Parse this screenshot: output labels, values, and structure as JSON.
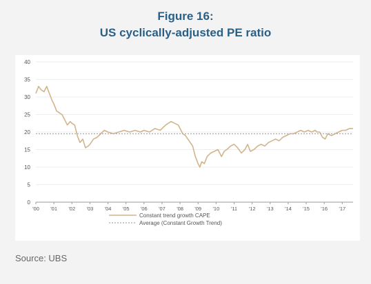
{
  "figure": {
    "number": "Figure 16:",
    "title": "US cyclically-adjusted PE ratio",
    "source": "Source: UBS"
  },
  "colors": {
    "cape_line": "#d2b48c",
    "average_line": "#a9a9a9",
    "title": "#2a5f86",
    "axis": "#555555"
  },
  "chart_data": {
    "type": "line",
    "title": "US cyclically-adjusted PE ratio",
    "xlabel": "",
    "ylabel": "",
    "xlim": [
      2000.0,
      2017.6
    ],
    "ylim": [
      0,
      40
    ],
    "y_ticks": [
      0,
      5,
      10,
      15,
      20,
      25,
      30,
      35,
      40
    ],
    "x_ticks": [
      {
        "x": 2000,
        "label": "'00"
      },
      {
        "x": 2001,
        "label": "'01"
      },
      {
        "x": 2002,
        "label": "'02"
      },
      {
        "x": 2003,
        "label": "'03"
      },
      {
        "x": 2004,
        "label": "'04"
      },
      {
        "x": 2005,
        "label": "'05"
      },
      {
        "x": 2006,
        "label": "'06"
      },
      {
        "x": 2007,
        "label": "'07"
      },
      {
        "x": 2008,
        "label": "'08"
      },
      {
        "x": 2009,
        "label": "'09"
      },
      {
        "x": 2010,
        "label": "'10"
      },
      {
        "x": 2011,
        "label": "'11"
      },
      {
        "x": 2012,
        "label": "'12"
      },
      {
        "x": 2013,
        "label": "'13"
      },
      {
        "x": 2014,
        "label": "'14"
      },
      {
        "x": 2015,
        "label": "'15"
      },
      {
        "x": 2016,
        "label": "'16"
      },
      {
        "x": 2017,
        "label": "'17"
      }
    ],
    "grid": true,
    "legend_position": "bottom",
    "series": [
      {
        "name": "Constant trend growth CAPE",
        "style": "solid",
        "x": [
          2000.0,
          2000.15,
          2000.3,
          2000.45,
          2000.6,
          2000.75,
          2000.9,
          2001.0,
          2001.15,
          2001.3,
          2001.45,
          2001.6,
          2001.75,
          2001.9,
          2002.0,
          2002.15,
          2002.3,
          2002.45,
          2002.6,
          2002.75,
          2002.9,
          2003.0,
          2003.2,
          2003.4,
          2003.6,
          2003.8,
          2004.0,
          2004.3,
          2004.6,
          2004.9,
          2005.2,
          2005.5,
          2005.8,
          2006.0,
          2006.3,
          2006.6,
          2006.9,
          2007.2,
          2007.5,
          2007.7,
          2007.9,
          2008.0,
          2008.15,
          2008.3,
          2008.5,
          2008.7,
          2008.85,
          2009.0,
          2009.1,
          2009.2,
          2009.35,
          2009.5,
          2009.7,
          2009.9,
          2010.1,
          2010.3,
          2010.45,
          2010.6,
          2010.8,
          2011.0,
          2011.2,
          2011.4,
          2011.6,
          2011.75,
          2011.9,
          2012.1,
          2012.3,
          2012.5,
          2012.7,
          2012.9,
          2013.1,
          2013.3,
          2013.5,
          2013.7,
          2013.9,
          2014.1,
          2014.3,
          2014.5,
          2014.7,
          2014.9,
          2015.1,
          2015.3,
          2015.5,
          2015.6,
          2015.75,
          2015.9,
          2016.05,
          2016.2,
          2016.4,
          2016.6,
          2016.8,
          2017.0,
          2017.2,
          2017.4,
          2017.6
        ],
        "y": [
          31,
          33,
          32,
          31.5,
          33,
          31,
          29,
          28,
          26,
          25.5,
          25,
          23.5,
          22,
          23,
          22.5,
          22,
          19,
          17,
          18,
          15.5,
          16,
          16.5,
          18,
          18.5,
          19.5,
          20.5,
          20,
          19.5,
          20,
          20.5,
          20,
          20.5,
          20,
          20.5,
          20,
          21,
          20.5,
          22,
          23,
          22.5,
          22,
          21,
          19.5,
          19,
          17.5,
          16,
          13,
          11,
          10,
          11.5,
          11,
          13,
          14,
          14.5,
          15,
          13,
          14.5,
          15,
          16,
          16.5,
          15.5,
          14,
          15,
          16.5,
          14.5,
          15,
          16,
          16.5,
          16,
          17,
          17.5,
          18,
          17.5,
          18.5,
          19,
          19.5,
          19.5,
          20,
          20.5,
          20,
          20.5,
          20,
          20.5,
          20,
          20,
          18.5,
          18,
          19.5,
          19,
          19.5,
          20,
          20.5,
          20.5,
          21,
          21
        ]
      },
      {
        "name": "Average (Constant Growth Trend)",
        "style": "dotted",
        "x": [
          2000.0,
          2017.6
        ],
        "y": [
          19.5,
          19.5
        ]
      }
    ]
  }
}
